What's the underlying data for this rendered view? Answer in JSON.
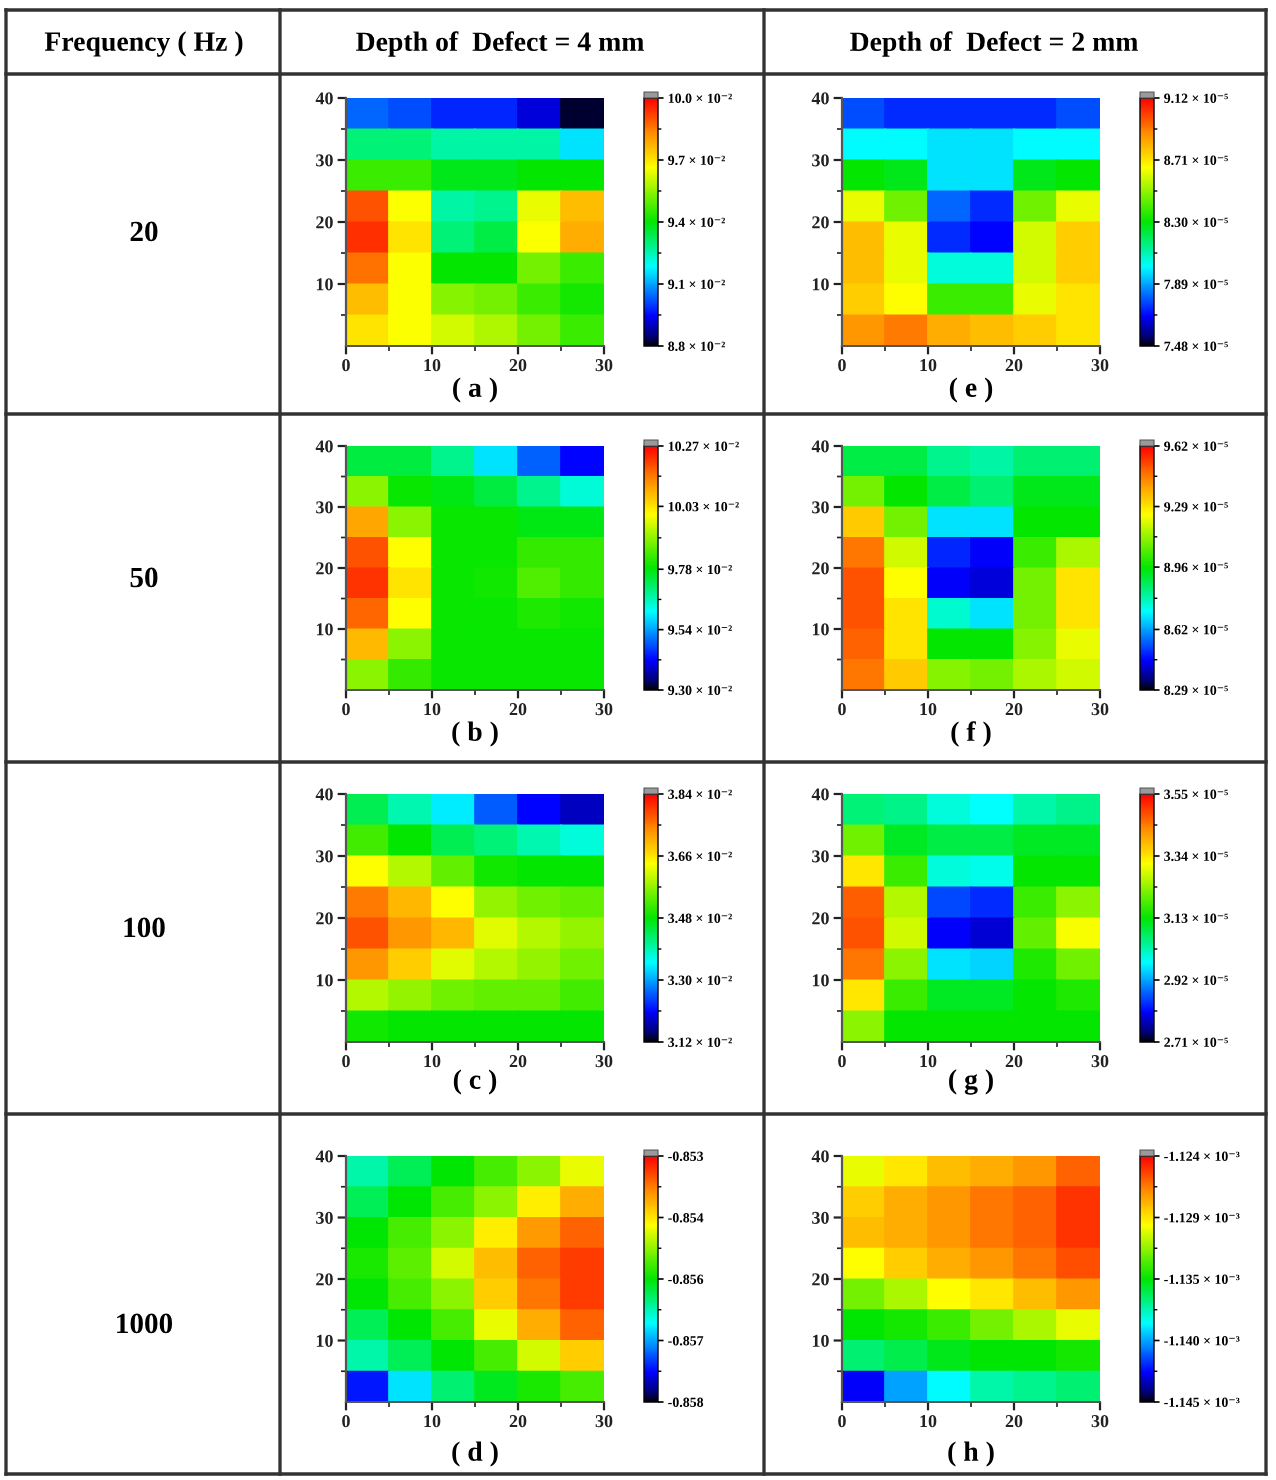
{
  "chart_data": [
    {
      "type": "scatter",
      "title": "Depth of  Defect = 4 mm",
      "annotations": [
        "Frequency ( Hz )"
      ],
      "ylabel": "20",
      "xlabel": "( a )",
      "marker": "square",
      "x": [
        2.5,
        7.5,
        12.5,
        17.5,
        22.5,
        27.5,
        2.5,
        7.5,
        12.5,
        17.5,
        22.5,
        27.5,
        2.5,
        7.5,
        12.5,
        17.5,
        22.5,
        27.5,
        2.5,
        7.5,
        12.5,
        17.5,
        22.5,
        27.5,
        2.5,
        7.5,
        12.5,
        17.5,
        22.5,
        27.5,
        2.5,
        7.5,
        12.5,
        17.5,
        22.5,
        27.5,
        2.5,
        7.5,
        12.5,
        17.5,
        22.5,
        27.5,
        2.5,
        7.5,
        12.5,
        17.5,
        22.5,
        27.5
      ],
      "values": [
        37.5,
        37.5,
        37.5,
        37.5,
        37.5,
        37.5,
        32.5,
        32.5,
        32.5,
        32.5,
        32.5,
        32.5,
        27.5,
        27.5,
        27.5,
        27.5,
        27.5,
        27.5,
        22.5,
        22.5,
        22.5,
        22.5,
        22.5,
        22.5,
        17.5,
        17.5,
        17.5,
        17.5,
        17.5,
        17.5,
        12.5,
        12.5,
        12.5,
        12.5,
        12.5,
        12.5,
        7.5,
        7.5,
        7.5,
        7.5,
        7.5,
        7.5,
        2.5,
        2.5,
        2.5,
        2.5,
        2.5,
        2.5
      ],
      "cvalues": [
        0.0904,
        0.0902,
        0.0898,
        0.0898,
        0.0892,
        0.0882,
        0.093,
        0.093,
        0.0926,
        0.0926,
        0.0926,
        0.0916,
        0.0946,
        0.0946,
        0.0938,
        0.0938,
        0.094,
        0.094,
        0.099,
        0.0966,
        0.0926,
        0.0928,
        0.0964,
        0.0976,
        0.0994,
        0.097,
        0.093,
        0.0934,
        0.0966,
        0.0978,
        0.0986,
        0.0966,
        0.094,
        0.094,
        0.0952,
        0.0946,
        0.0976,
        0.0966,
        0.0954,
        0.0952,
        0.0946,
        0.0942,
        0.097,
        0.0966,
        0.0962,
        0.0958,
        0.0952,
        0.0946
      ],
      "xlim": [
        0,
        30
      ],
      "xticks": [
        0,
        {
          "value": 5,
          "label": null
        },
        10,
        {
          "value": 15,
          "label": null
        },
        20,
        {
          "value": 25,
          "label": null
        },
        30
      ],
      "ylim": [
        0,
        40
      ],
      "yticks": [
        {
          "value": 5,
          "label": null
        },
        10,
        {
          "value": 15,
          "label": null
        },
        20,
        {
          "value": 25,
          "label": null
        },
        30,
        {
          "value": 35,
          "label": null
        },
        40
      ],
      "clim": [
        0.088,
        0.1
      ],
      "cticks": [
        {
          "value": 0.088,
          "label": "8.8 × 10⁻²"
        },
        {
          "value": 0.0895,
          "label": null
        },
        {
          "value": 0.091,
          "label": "9.1 × 10⁻²"
        },
        {
          "value": 0.0925,
          "label": null
        },
        {
          "value": 0.094,
          "label": "9.4 × 10⁻²"
        },
        {
          "value": 0.0955,
          "label": null
        },
        {
          "value": 0.097,
          "label": "9.7 × 10⁻²"
        },
        {
          "value": 0.0985,
          "label": null
        },
        {
          "value": 0.1,
          "label": "10.0 × 10⁻²"
        }
      ]
    },
    {
      "type": "scatter",
      "title": "Depth of  Defect = 2 mm",
      "xlabel": "( e )",
      "marker": "square",
      "x": [
        2.5,
        7.5,
        12.5,
        17.5,
        22.5,
        27.5,
        2.5,
        7.5,
        12.5,
        17.5,
        22.5,
        27.5,
        2.5,
        7.5,
        12.5,
        17.5,
        22.5,
        27.5,
        2.5,
        7.5,
        12.5,
        17.5,
        22.5,
        27.5,
        2.5,
        7.5,
        12.5,
        17.5,
        22.5,
        27.5,
        2.5,
        7.5,
        12.5,
        17.5,
        22.5,
        27.5,
        2.5,
        7.5,
        12.5,
        17.5,
        22.5,
        27.5,
        2.5,
        7.5,
        12.5,
        17.5,
        22.5,
        27.5
      ],
      "values": [
        37.5,
        37.5,
        37.5,
        37.5,
        37.5,
        37.5,
        32.5,
        32.5,
        32.5,
        32.5,
        32.5,
        32.5,
        27.5,
        27.5,
        27.5,
        27.5,
        27.5,
        27.5,
        22.5,
        22.5,
        22.5,
        22.5,
        22.5,
        22.5,
        17.5,
        17.5,
        17.5,
        17.5,
        17.5,
        17.5,
        12.5,
        12.5,
        12.5,
        12.5,
        12.5,
        12.5,
        7.5,
        7.5,
        7.5,
        7.5,
        7.5,
        7.5,
        2.5,
        2.5,
        2.5,
        2.5,
        2.5,
        2.5
      ],
      "cvalues": [
        7.78e-05,
        7.73e-05,
        7.73e-05,
        7.73e-05,
        7.73e-05,
        7.78e-05,
        8e-05,
        8e-05,
        7.97e-05,
        7.97e-05,
        8e-05,
        8e-05,
        8.3e-05,
        8.27e-05,
        7.97e-05,
        7.97e-05,
        8.27e-05,
        8.3e-05,
        8.63e-05,
        8.46e-05,
        7.81e-05,
        7.73e-05,
        8.46e-05,
        8.63e-05,
        8.79e-05,
        8.63e-05,
        7.73e-05,
        7.68e-05,
        8.6e-05,
        8.76e-05,
        8.79e-05,
        8.63e-05,
        8.05e-05,
        8.05e-05,
        8.6e-05,
        8.76e-05,
        8.76e-05,
        8.66e-05,
        8.38e-05,
        8.38e-05,
        8.63e-05,
        8.71e-05,
        8.87e-05,
        8.92e-05,
        8.82e-05,
        8.79e-05,
        8.76e-05,
        8.71e-05
      ],
      "xlim": [
        0,
        30
      ],
      "xticks": [
        0,
        {
          "value": 5,
          "label": null
        },
        10,
        {
          "value": 15,
          "label": null
        },
        20,
        {
          "value": 25,
          "label": null
        },
        30
      ],
      "ylim": [
        0,
        40
      ],
      "yticks": [
        {
          "value": 5,
          "label": null
        },
        10,
        {
          "value": 15,
          "label": null
        },
        20,
        {
          "value": 25,
          "label": null
        },
        30,
        {
          "value": 35,
          "label": null
        },
        40
      ],
      "clim": [
        7.48e-05,
        9.12e-05
      ],
      "cticks": [
        {
          "value": 7.48e-05,
          "label": "7.48 × 10⁻⁵"
        },
        {
          "value": 7.685e-05,
          "label": null
        },
        {
          "value": 7.89e-05,
          "label": "7.89 × 10⁻⁵"
        },
        {
          "value": 8.095e-05,
          "label": null
        },
        {
          "value": 8.3e-05,
          "label": "8.30 × 10⁻⁵"
        },
        {
          "value": 8.505e-05,
          "label": null
        },
        {
          "value": 8.71e-05,
          "label": "8.71 × 10⁻⁵"
        },
        {
          "value": 8.915e-05,
          "label": null
        },
        {
          "value": 9.12e-05,
          "label": "9.12 × 10⁻⁵"
        }
      ]
    },
    {
      "type": "scatter",
      "ylabel": "50",
      "xlabel": "( b )",
      "marker": "square",
      "x": [
        2.5,
        7.5,
        12.5,
        17.5,
        22.5,
        27.5,
        2.5,
        7.5,
        12.5,
        17.5,
        22.5,
        27.5,
        2.5,
        7.5,
        12.5,
        17.5,
        22.5,
        27.5,
        2.5,
        7.5,
        12.5,
        17.5,
        22.5,
        27.5,
        2.5,
        7.5,
        12.5,
        17.5,
        22.5,
        27.5,
        2.5,
        7.5,
        12.5,
        17.5,
        22.5,
        27.5,
        2.5,
        7.5,
        12.5,
        17.5,
        22.5,
        27.5,
        2.5,
        7.5,
        12.5,
        17.5,
        22.5,
        27.5
      ],
      "values": [
        37.5,
        37.5,
        37.5,
        37.5,
        37.5,
        37.5,
        32.5,
        32.5,
        32.5,
        32.5,
        32.5,
        32.5,
        27.5,
        27.5,
        27.5,
        27.5,
        27.5,
        27.5,
        22.5,
        22.5,
        22.5,
        22.5,
        22.5,
        22.5,
        17.5,
        17.5,
        17.5,
        17.5,
        17.5,
        17.5,
        12.5,
        12.5,
        12.5,
        12.5,
        12.5,
        12.5,
        7.5,
        7.5,
        7.5,
        7.5,
        7.5,
        7.5,
        2.5,
        2.5,
        2.5,
        2.5,
        2.5,
        2.5
      ],
      "cvalues": [
        0.0974,
        0.0974,
        0.0969,
        0.0959,
        0.0949,
        0.0942,
        0.099,
        0.0979,
        0.0977,
        0.0974,
        0.0969,
        0.0964,
        0.101,
        0.099,
        0.0979,
        0.0979,
        0.0977,
        0.0977,
        0.1019,
        0.1,
        0.0979,
        0.0979,
        0.0983,
        0.0983,
        0.1022,
        0.1003,
        0.0979,
        0.098,
        0.0985,
        0.0983,
        0.1017,
        0.1,
        0.0979,
        0.0979,
        0.0981,
        0.098,
        0.1008,
        0.099,
        0.0979,
        0.0979,
        0.0979,
        0.0979,
        0.099,
        0.0983,
        0.0979,
        0.0979,
        0.0979,
        0.0979
      ],
      "xlim": [
        0,
        30
      ],
      "xticks": [
        0,
        {
          "value": 5,
          "label": null
        },
        10,
        {
          "value": 15,
          "label": null
        },
        20,
        {
          "value": 25,
          "label": null
        },
        30
      ],
      "ylim": [
        0,
        40
      ],
      "yticks": [
        {
          "value": 5,
          "label": null
        },
        10,
        {
          "value": 15,
          "label": null
        },
        20,
        {
          "value": 25,
          "label": null
        },
        30,
        {
          "value": 35,
          "label": null
        },
        40
      ],
      "clim": [
        0.093,
        0.1027
      ],
      "cticks": [
        {
          "value": 0.093,
          "label": "9.30 × 10⁻²"
        },
        {
          "value": 0.0942,
          "label": null
        },
        {
          "value": 0.0954,
          "label": "9.54 × 10⁻²"
        },
        {
          "value": 0.0966,
          "label": null
        },
        {
          "value": 0.0978,
          "label": "9.78 × 10⁻²"
        },
        {
          "value": 0.09905,
          "label": null
        },
        {
          "value": 0.1003,
          "label": "10.03 × 10⁻²"
        },
        {
          "value": 0.1015,
          "label": null
        },
        {
          "value": 0.1027,
          "label": "10.27 × 10⁻²"
        }
      ]
    },
    {
      "type": "scatter",
      "xlabel": "( f )",
      "marker": "square",
      "x": [
        2.5,
        7.5,
        12.5,
        17.5,
        22.5,
        27.5,
        2.5,
        7.5,
        12.5,
        17.5,
        22.5,
        27.5,
        2.5,
        7.5,
        12.5,
        17.5,
        22.5,
        27.5,
        2.5,
        7.5,
        12.5,
        17.5,
        22.5,
        27.5,
        2.5,
        7.5,
        12.5,
        17.5,
        22.5,
        27.5,
        2.5,
        7.5,
        12.5,
        17.5,
        22.5,
        27.5,
        2.5,
        7.5,
        12.5,
        17.5,
        22.5,
        27.5,
        2.5,
        7.5,
        12.5,
        17.5,
        22.5,
        27.5
      ],
      "values": [
        37.5,
        37.5,
        37.5,
        37.5,
        37.5,
        37.5,
        32.5,
        32.5,
        32.5,
        32.5,
        32.5,
        32.5,
        27.5,
        27.5,
        27.5,
        27.5,
        27.5,
        27.5,
        22.5,
        22.5,
        22.5,
        22.5,
        22.5,
        22.5,
        17.5,
        17.5,
        17.5,
        17.5,
        17.5,
        17.5,
        12.5,
        12.5,
        12.5,
        12.5,
        12.5,
        12.5,
        7.5,
        7.5,
        7.5,
        7.5,
        7.5,
        7.5,
        2.5,
        2.5,
        2.5,
        2.5,
        2.5,
        2.5
      ],
      "cvalues": [
        8.89e-05,
        8.89e-05,
        8.82e-05,
        8.8e-05,
        8.85e-05,
        8.85e-05,
        9.09e-05,
        8.96e-05,
        8.89e-05,
        8.85e-05,
        8.93e-05,
        8.93e-05,
        9.33e-05,
        9.09e-05,
        8.69e-05,
        8.69e-05,
        8.96e-05,
        8.96e-05,
        9.46e-05,
        9.19e-05,
        8.49e-05,
        8.45e-05,
        9.02e-05,
        9.15e-05,
        9.51e-05,
        9.25e-05,
        8.45e-05,
        8.42e-05,
        9.09e-05,
        9.29e-05,
        9.51e-05,
        9.29e-05,
        8.76e-05,
        8.69e-05,
        9.09e-05,
        9.29e-05,
        9.49e-05,
        9.29e-05,
        8.96e-05,
        8.96e-05,
        9.11e-05,
        9.22e-05,
        9.46e-05,
        9.33e-05,
        9.11e-05,
        9.09e-05,
        9.15e-05,
        9.19e-05
      ],
      "xlim": [
        0,
        30
      ],
      "xticks": [
        0,
        {
          "value": 5,
          "label": null
        },
        10,
        {
          "value": 15,
          "label": null
        },
        20,
        {
          "value": 25,
          "label": null
        },
        30
      ],
      "ylim": [
        0,
        40
      ],
      "yticks": [
        {
          "value": 5,
          "label": null
        },
        10,
        {
          "value": 15,
          "label": null
        },
        20,
        {
          "value": 25,
          "label": null
        },
        30,
        {
          "value": 35,
          "label": null
        },
        40
      ],
      "clim": [
        8.29e-05,
        9.62e-05
      ],
      "cticks": [
        {
          "value": 8.29e-05,
          "label": "8.29 × 10⁻⁵"
        },
        {
          "value": 8.455e-05,
          "label": null
        },
        {
          "value": 8.62e-05,
          "label": "8.62 × 10⁻⁵"
        },
        {
          "value": 8.79e-05,
          "label": null
        },
        {
          "value": 8.96e-05,
          "label": "8.96 × 10⁻⁵"
        },
        {
          "value": 9.125e-05,
          "label": null
        },
        {
          "value": 9.29e-05,
          "label": "9.29 × 10⁻⁵"
        },
        {
          "value": 9.455e-05,
          "label": null
        },
        {
          "value": 9.62e-05,
          "label": "9.62 × 10⁻⁵"
        }
      ]
    },
    {
      "type": "scatter",
      "ylabel": "100",
      "xlabel": "( c )",
      "marker": "square",
      "x": [
        2.5,
        7.5,
        12.5,
        17.5,
        22.5,
        27.5,
        2.5,
        7.5,
        12.5,
        17.5,
        22.5,
        27.5,
        2.5,
        7.5,
        12.5,
        17.5,
        22.5,
        27.5,
        2.5,
        7.5,
        12.5,
        17.5,
        22.5,
        27.5,
        2.5,
        7.5,
        12.5,
        17.5,
        22.5,
        27.5,
        2.5,
        7.5,
        12.5,
        17.5,
        22.5,
        27.5,
        2.5,
        7.5,
        12.5,
        17.5,
        22.5,
        27.5,
        2.5,
        7.5,
        12.5,
        17.5,
        22.5,
        27.5
      ],
      "values": [
        37.5,
        37.5,
        37.5,
        37.5,
        37.5,
        37.5,
        32.5,
        32.5,
        32.5,
        32.5,
        32.5,
        32.5,
        27.5,
        27.5,
        27.5,
        27.5,
        27.5,
        27.5,
        22.5,
        22.5,
        22.5,
        22.5,
        22.5,
        22.5,
        17.5,
        17.5,
        17.5,
        17.5,
        17.5,
        17.5,
        12.5,
        12.5,
        12.5,
        12.5,
        12.5,
        12.5,
        7.5,
        7.5,
        7.5,
        7.5,
        7.5,
        7.5,
        2.5,
        2.5,
        2.5,
        2.5,
        2.5,
        2.5
      ],
      "cvalues": [
        0.0344,
        0.0339,
        0.0334,
        0.0326,
        0.0321,
        0.0318,
        0.0352,
        0.0348,
        0.0344,
        0.0342,
        0.0339,
        0.0337,
        0.0364,
        0.0359,
        0.0354,
        0.0349,
        0.0348,
        0.0348,
        0.0375,
        0.037,
        0.0364,
        0.0357,
        0.0355,
        0.0354,
        0.0378,
        0.0373,
        0.037,
        0.0362,
        0.0359,
        0.0357,
        0.0373,
        0.0368,
        0.0362,
        0.0359,
        0.0357,
        0.0355,
        0.0359,
        0.0357,
        0.0355,
        0.0354,
        0.0354,
        0.0352,
        0.0349,
        0.0348,
        0.0348,
        0.0348,
        0.0348,
        0.0348
      ],
      "xlim": [
        0,
        30
      ],
      "xticks": [
        0,
        {
          "value": 5,
          "label": null
        },
        10,
        {
          "value": 15,
          "label": null
        },
        20,
        {
          "value": 25,
          "label": null
        },
        30
      ],
      "ylim": [
        0,
        40
      ],
      "yticks": [
        {
          "value": 5,
          "label": null
        },
        10,
        {
          "value": 15,
          "label": null
        },
        20,
        {
          "value": 25,
          "label": null
        },
        30,
        {
          "value": 35,
          "label": null
        },
        40
      ],
      "clim": [
        0.0312,
        0.0384
      ],
      "cticks": [
        {
          "value": 0.0312,
          "label": "3.12 × 10⁻²"
        },
        {
          "value": 0.0321,
          "label": null
        },
        {
          "value": 0.033,
          "label": "3.30 × 10⁻²"
        },
        {
          "value": 0.0339,
          "label": null
        },
        {
          "value": 0.0348,
          "label": "3.48 × 10⁻²"
        },
        {
          "value": 0.0357,
          "label": null
        },
        {
          "value": 0.0366,
          "label": "3.66 × 10⁻²"
        },
        {
          "value": 0.0375,
          "label": null
        },
        {
          "value": 0.0384,
          "label": "3.84 × 10⁻²"
        }
      ]
    },
    {
      "type": "scatter",
      "xlabel": "( g )",
      "marker": "square",
      "x": [
        2.5,
        7.5,
        12.5,
        17.5,
        22.5,
        27.5,
        2.5,
        7.5,
        12.5,
        17.5,
        22.5,
        27.5,
        2.5,
        7.5,
        12.5,
        17.5,
        22.5,
        27.5,
        2.5,
        7.5,
        12.5,
        17.5,
        22.5,
        27.5,
        2.5,
        7.5,
        12.5,
        17.5,
        22.5,
        27.5,
        2.5,
        7.5,
        12.5,
        17.5,
        22.5,
        27.5,
        2.5,
        7.5,
        12.5,
        17.5,
        22.5,
        27.5,
        2.5,
        7.5,
        12.5,
        17.5,
        22.5,
        27.5
      ],
      "values": [
        37.5,
        37.5,
        37.5,
        37.5,
        37.5,
        37.5,
        32.5,
        32.5,
        32.5,
        32.5,
        32.5,
        32.5,
        27.5,
        27.5,
        27.5,
        27.5,
        27.5,
        27.5,
        22.5,
        22.5,
        22.5,
        22.5,
        22.5,
        22.5,
        17.5,
        17.5,
        17.5,
        17.5,
        17.5,
        17.5,
        12.5,
        12.5,
        12.5,
        12.5,
        12.5,
        12.5,
        7.5,
        7.5,
        7.5,
        7.5,
        7.5,
        7.5,
        2.5,
        2.5,
        2.5,
        2.5,
        2.5,
        2.5
      ],
      "cvalues": [
        3.06e-05,
        3.05e-05,
        3e-05,
        2.98e-05,
        3.03e-05,
        3.05e-05,
        3.21e-05,
        3.11e-05,
        3.09e-05,
        3.09e-05,
        3.11e-05,
        3.11e-05,
        3.34e-05,
        3.17e-05,
        3e-05,
        2.99e-05,
        3.13e-05,
        3.13e-05,
        3.47e-05,
        3.26e-05,
        2.86e-05,
        2.84e-05,
        3.17e-05,
        3.23e-05,
        3.48e-05,
        3.28e-05,
        2.81e-05,
        2.79e-05,
        3.2e-05,
        3.31e-05,
        3.45e-05,
        3.23e-05,
        2.96e-05,
        2.95e-05,
        3.15e-05,
        3.21e-05,
        3.34e-05,
        3.17e-05,
        3.11e-05,
        3.11e-05,
        3.13e-05,
        3.15e-05,
        3.23e-05,
        3.13e-05,
        3.13e-05,
        3.13e-05,
        3.13e-05,
        3.13e-05
      ],
      "xlim": [
        0,
        30
      ],
      "xticks": [
        0,
        {
          "value": 5,
          "label": null
        },
        10,
        {
          "value": 15,
          "label": null
        },
        20,
        {
          "value": 25,
          "label": null
        },
        30
      ],
      "ylim": [
        0,
        40
      ],
      "yticks": [
        {
          "value": 5,
          "label": null
        },
        10,
        {
          "value": 15,
          "label": null
        },
        20,
        {
          "value": 25,
          "label": null
        },
        30,
        {
          "value": 35,
          "label": null
        },
        40
      ],
      "clim": [
        2.71e-05,
        3.55e-05
      ],
      "cticks": [
        {
          "value": 2.71e-05,
          "label": "2.71 × 10⁻⁵"
        },
        {
          "value": 2.815e-05,
          "label": null
        },
        {
          "value": 2.92e-05,
          "label": "2.92 × 10⁻⁵"
        },
        {
          "value": 3.025e-05,
          "label": null
        },
        {
          "value": 3.13e-05,
          "label": "3.13 × 10⁻⁵"
        },
        {
          "value": 3.235e-05,
          "label": null
        },
        {
          "value": 3.34e-05,
          "label": "3.34 × 10⁻⁵"
        },
        {
          "value": 3.445e-05,
          "label": null
        },
        {
          "value": 3.55e-05,
          "label": "3.55 × 10⁻⁵"
        }
      ]
    },
    {
      "type": "scatter",
      "ylabel": "1000",
      "xlabel": "( d )",
      "marker": "square",
      "x": [
        2.5,
        7.5,
        12.5,
        17.5,
        22.5,
        27.5,
        2.5,
        7.5,
        12.5,
        17.5,
        22.5,
        27.5,
        2.5,
        7.5,
        12.5,
        17.5,
        22.5,
        27.5,
        2.5,
        7.5,
        12.5,
        17.5,
        22.5,
        27.5,
        2.5,
        7.5,
        12.5,
        17.5,
        22.5,
        27.5,
        2.5,
        7.5,
        12.5,
        17.5,
        22.5,
        27.5,
        2.5,
        7.5,
        12.5,
        17.5,
        22.5,
        27.5,
        2.5,
        7.5,
        12.5,
        17.5,
        22.5,
        27.5
      ],
      "values": [
        37.5,
        37.5,
        37.5,
        37.5,
        37.5,
        37.5,
        32.5,
        32.5,
        32.5,
        32.5,
        32.5,
        32.5,
        27.5,
        27.5,
        27.5,
        27.5,
        27.5,
        27.5,
        22.5,
        22.5,
        22.5,
        22.5,
        22.5,
        22.5,
        17.5,
        17.5,
        17.5,
        17.5,
        17.5,
        17.5,
        12.5,
        12.5,
        12.5,
        12.5,
        12.5,
        12.5,
        7.5,
        7.5,
        7.5,
        7.5,
        7.5,
        7.5,
        2.5,
        2.5,
        2.5,
        2.5,
        2.5,
        2.5
      ],
      "cvalues": [
        -0.8561,
        -0.8558,
        -0.8555,
        -0.8552,
        -0.8549,
        -0.8545,
        -0.8558,
        -0.8555,
        -0.8552,
        -0.8549,
        -0.8543,
        -0.8539,
        -0.8555,
        -0.8552,
        -0.8549,
        -0.8543,
        -0.8538,
        -0.8535,
        -0.8554,
        -0.8551,
        -0.8546,
        -0.854,
        -0.8535,
        -0.8533,
        -0.8555,
        -0.8552,
        -0.8549,
        -0.8541,
        -0.8536,
        -0.8533,
        -0.8558,
        -0.8555,
        -0.8552,
        -0.8545,
        -0.8539,
        -0.8535,
        -0.8561,
        -0.8558,
        -0.8555,
        -0.8552,
        -0.8546,
        -0.8541,
        -0.8573,
        -0.8565,
        -0.8559,
        -0.8556,
        -0.8554,
        -0.8552
      ],
      "xlim": [
        0,
        30
      ],
      "xticks": [
        0,
        {
          "value": 5,
          "label": null
        },
        10,
        {
          "value": 15,
          "label": null
        },
        20,
        {
          "value": 25,
          "label": null
        },
        30
      ],
      "ylim": [
        0,
        40
      ],
      "yticks": [
        {
          "value": 5,
          "label": null
        },
        10,
        {
          "value": 15,
          "label": null
        },
        20,
        {
          "value": 25,
          "label": null
        },
        30,
        {
          "value": 35,
          "label": null
        },
        40
      ],
      "clim": [
        -0.858,
        -0.853
      ],
      "cticks": [
        -0.858,
        {
          "value": -0.857375,
          "label": null
        },
        {
          "value": -0.85675,
          "label": "-0.857"
        },
        {
          "value": -0.856125,
          "label": null
        },
        {
          "value": -0.8555,
          "label": "-0.856"
        },
        {
          "value": -0.854875,
          "label": null
        },
        {
          "value": -0.85425,
          "label": "-0.854"
        },
        {
          "value": -0.853625,
          "label": null
        },
        -0.853
      ]
    },
    {
      "type": "scatter",
      "xlabel": "( h )",
      "marker": "square",
      "x": [
        2.5,
        7.5,
        12.5,
        17.5,
        22.5,
        27.5,
        2.5,
        7.5,
        12.5,
        17.5,
        22.5,
        27.5,
        2.5,
        7.5,
        12.5,
        17.5,
        22.5,
        27.5,
        2.5,
        7.5,
        12.5,
        17.5,
        22.5,
        27.5,
        2.5,
        7.5,
        12.5,
        17.5,
        22.5,
        27.5,
        2.5,
        7.5,
        12.5,
        17.5,
        22.5,
        27.5,
        2.5,
        7.5,
        12.5,
        17.5,
        22.5,
        27.5,
        2.5,
        7.5,
        12.5,
        17.5,
        22.5,
        27.5
      ],
      "values": [
        37.5,
        37.5,
        37.5,
        37.5,
        37.5,
        37.5,
        32.5,
        32.5,
        32.5,
        32.5,
        32.5,
        32.5,
        27.5,
        27.5,
        27.5,
        27.5,
        27.5,
        27.5,
        22.5,
        22.5,
        22.5,
        22.5,
        22.5,
        22.5,
        17.5,
        17.5,
        17.5,
        17.5,
        17.5,
        17.5,
        12.5,
        12.5,
        12.5,
        12.5,
        12.5,
        12.5,
        7.5,
        7.5,
        7.5,
        7.5,
        7.5,
        7.5,
        2.5,
        2.5,
        2.5,
        2.5,
        2.5,
        2.5
      ],
      "cvalues": [
        -0.0011303,
        -0.0011293,
        -0.0011282,
        -0.0011278,
        -0.0011272,
        -0.0011261,
        -0.0011286,
        -0.0011278,
        -0.0011272,
        -0.0011265,
        -0.0011261,
        -0.0011251,
        -0.0011282,
        -0.0011278,
        -0.0011272,
        -0.0011265,
        -0.0011261,
        -0.0011251,
        -0.0011299,
        -0.0011286,
        -0.0011278,
        -0.0011272,
        -0.0011265,
        -0.0011257,
        -0.0011324,
        -0.0011314,
        -0.0011299,
        -0.0011293,
        -0.0011282,
        -0.0011272,
        -0.0011345,
        -0.0011341,
        -0.0011335,
        -0.0011324,
        -0.0011314,
        -0.0011303,
        -0.0011362,
        -0.0011356,
        -0.0011349,
        -0.0011345,
        -0.0011345,
        -0.0011341,
        -0.0011425,
        -0.0011398,
        -0.0011383,
        -0.001137,
        -0.0011366,
        -0.0011362
      ],
      "xlim": [
        0,
        30
      ],
      "xticks": [
        0,
        {
          "value": 5,
          "label": null
        },
        10,
        {
          "value": 15,
          "label": null
        },
        20,
        {
          "value": 25,
          "label": null
        },
        30
      ],
      "ylim": [
        0,
        40
      ],
      "yticks": [
        {
          "value": 5,
          "label": null
        },
        10,
        {
          "value": 15,
          "label": null
        },
        20,
        {
          "value": 25,
          "label": null
        },
        30,
        {
          "value": 35,
          "label": null
        },
        40
      ],
      "clim": [
        -0.001145,
        -0.001124
      ],
      "cticks": [
        {
          "value": -0.001145,
          "label": "-1.145 × 10⁻³"
        },
        {
          "value": -0.001142375,
          "label": null
        },
        {
          "value": -0.00113975,
          "label": "-1.140 × 10⁻³"
        },
        {
          "value": -0.001137125,
          "label": null
        },
        {
          "value": -0.0011345,
          "label": "-1.135 × 10⁻³"
        },
        {
          "value": -0.001131875,
          "label": null
        },
        {
          "value": -0.00112925,
          "label": "-1.129 × 10⁻³"
        },
        {
          "value": -0.001126625,
          "label": null
        },
        {
          "value": -0.001124,
          "label": "-1.124 × 10⁻³"
        }
      ]
    }
  ]
}
